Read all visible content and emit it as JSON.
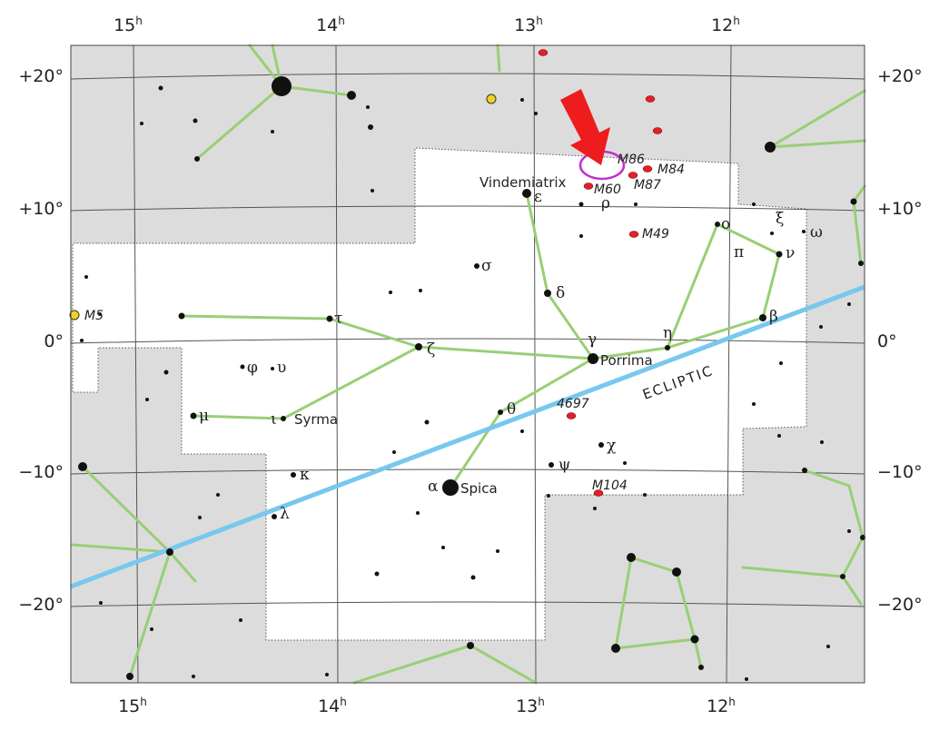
{
  "ra_axis": {
    "hours": [
      "15",
      "14",
      "13",
      "12"
    ],
    "unit": "h"
  },
  "dec_axis": {
    "labels": [
      "+20°",
      "+10°",
      "0°",
      "−10°",
      "−20°"
    ]
  },
  "star_names": [
    "Vindemiatrix",
    "Porrima",
    "Syrma",
    "Spica"
  ],
  "greek_letters": [
    "ε",
    "ρ",
    "σ",
    "δ",
    "γ",
    "ζ",
    "τ",
    "φ",
    "υ",
    "μ",
    "ι",
    "θ",
    "κ",
    "λ",
    "α",
    "χ",
    "ψ",
    "η",
    "ο",
    "π",
    "ξ",
    "ν",
    "ω",
    "β"
  ],
  "deep_sky": [
    "M86",
    "M84",
    "M87",
    "M60",
    "M49",
    "M5",
    "4697",
    "M104"
  ],
  "ecliptic_label": "ECLIPTIC"
}
